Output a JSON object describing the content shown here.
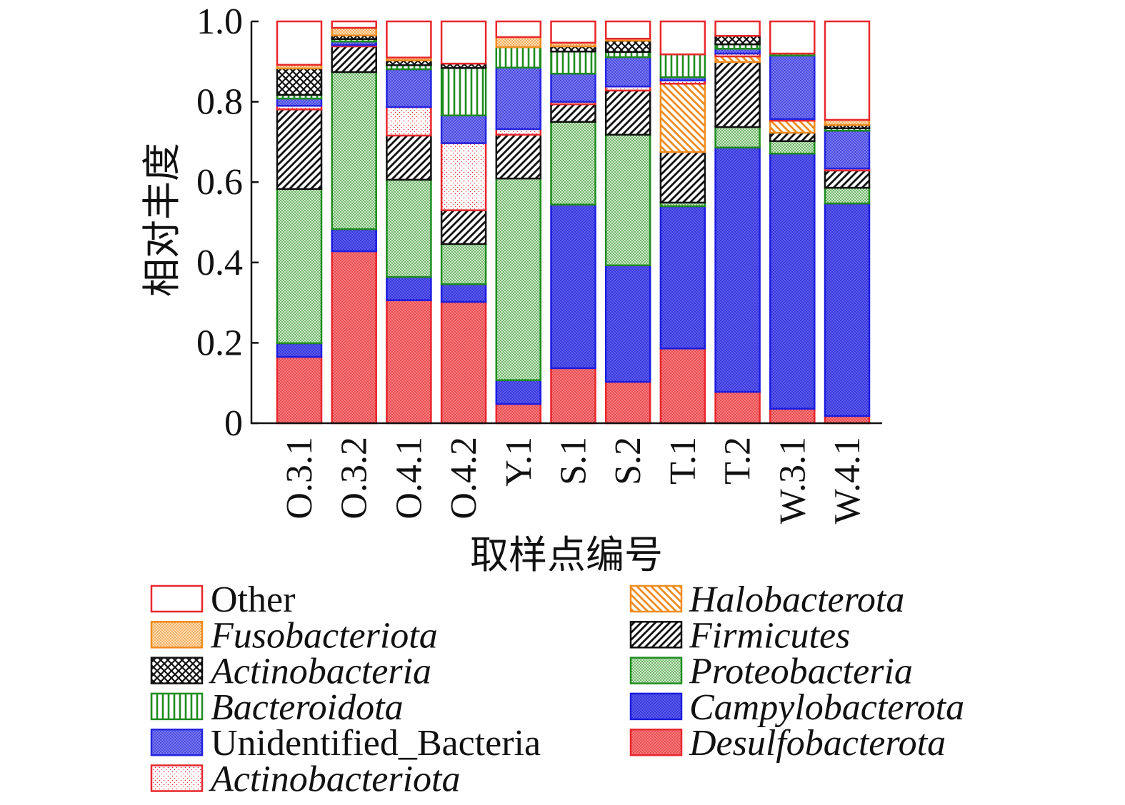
{
  "chart_data": {
    "type": "bar",
    "stacked": true,
    "xlabel": "取样点编号",
    "ylabel": "相对丰度",
    "ylim": [
      0,
      1.0
    ],
    "grid": false,
    "legend": "bottom",
    "yticks": [
      {
        "value": 0,
        "label": "0"
      },
      {
        "value": 0.2,
        "label": "0.2"
      },
      {
        "value": 0.4,
        "label": "0.4"
      },
      {
        "value": 0.6,
        "label": "0.6"
      },
      {
        "value": 0.8,
        "label": "0.8"
      },
      {
        "value": 1.0,
        "label": "1.0"
      }
    ],
    "categories": [
      "O.3.1",
      "O.3.2",
      "O.4.1",
      "O.4.2",
      "Y.1",
      "S.1",
      "S.2",
      "T.1",
      "T.2",
      "W.3.1",
      "W.4.1"
    ],
    "series": [
      {
        "name": "Desulfobacterota",
        "italic": true,
        "pattern": "dots",
        "color": "#e8262b",
        "fill": "#f27c7f",
        "values": [
          0.165,
          0.428,
          0.306,
          0.302,
          0.048,
          0.137,
          0.103,
          0.186,
          0.078,
          0.036,
          0.018
        ]
      },
      {
        "name": "Campylobacterota",
        "italic": true,
        "pattern": "dots",
        "color": "#1c1ce0",
        "fill": "#5c5ce6",
        "values": [
          0.034,
          0.055,
          0.058,
          0.044,
          0.059,
          0.407,
          0.29,
          0.354,
          0.608,
          0.635,
          0.529
        ]
      },
      {
        "name": "Proteobacteria",
        "italic": true,
        "pattern": "dots",
        "color": "#1e8c1e",
        "fill": "#d2ebcc",
        "values": [
          0.384,
          0.391,
          0.242,
          0.1,
          0.502,
          0.206,
          0.325,
          0.009,
          0.051,
          0.031,
          0.039
        ]
      },
      {
        "name": "Firmicutes",
        "italic": true,
        "pattern": "diagonal",
        "color": "#111111",
        "fill": "#ffffff",
        "values": [
          0.198,
          0.064,
          0.11,
          0.084,
          0.109,
          0.044,
          0.11,
          0.126,
          0.162,
          0.021,
          0.043
        ]
      },
      {
        "name": "Halobacterota",
        "italic": true,
        "pattern": "back-diagonal",
        "color": "#f08c1e",
        "fill": "#ffffff",
        "values": [
          0,
          0,
          0,
          0,
          0,
          0,
          0,
          0.17,
          0.014,
          0.03,
          0
        ]
      },
      {
        "name": "Actinobacteriota",
        "italic": true,
        "pattern": "sparse-dots",
        "color": "#e8262b",
        "fill": "#ffffff",
        "values": [
          0.009,
          0.003,
          0.071,
          0.167,
          0.014,
          0.006,
          0.01,
          0.008,
          0.007,
          0.004,
          0.005
        ]
      },
      {
        "name": "Unidentified_Bacteria",
        "italic": false,
        "pattern": "dots",
        "color": "#2424e0",
        "fill": "#7a7aec",
        "values": [
          0.018,
          0.009,
          0.094,
          0.069,
          0.153,
          0.07,
          0.073,
          0.008,
          0.012,
          0.158,
          0.094
        ]
      },
      {
        "name": "Bacteroidota",
        "italic": true,
        "pattern": "vertical",
        "color": "#1e8c1e",
        "fill": "#ffffff",
        "values": [
          0.009,
          0.006,
          0.01,
          0.118,
          0.051,
          0.055,
          0.013,
          0.057,
          0.011,
          0.005,
          0.006
        ]
      },
      {
        "name": "Actinobacteria",
        "italic": true,
        "pattern": "crosshatch",
        "color": "#111111",
        "fill": "#ffffff",
        "values": [
          0.066,
          0.009,
          0.012,
          0.011,
          0,
          0.013,
          0.028,
          0,
          0.021,
          0,
          0.008
        ]
      },
      {
        "name": "Fusobacteriota",
        "italic": true,
        "pattern": "dots",
        "color": "#f08c1e",
        "fill": "#fcdcb5",
        "values": [
          0.009,
          0.019,
          0.007,
          0,
          0.025,
          0.009,
          0.005,
          0,
          0,
          0,
          0.013
        ]
      },
      {
        "name": "Other",
        "italic": false,
        "pattern": "solid",
        "color": "#e8262b",
        "fill": "#ffffff",
        "values": [
          0.108,
          0.016,
          0.09,
          0.105,
          0.039,
          0.053,
          0.043,
          0.082,
          0.036,
          0.08,
          0.245
        ]
      }
    ]
  }
}
